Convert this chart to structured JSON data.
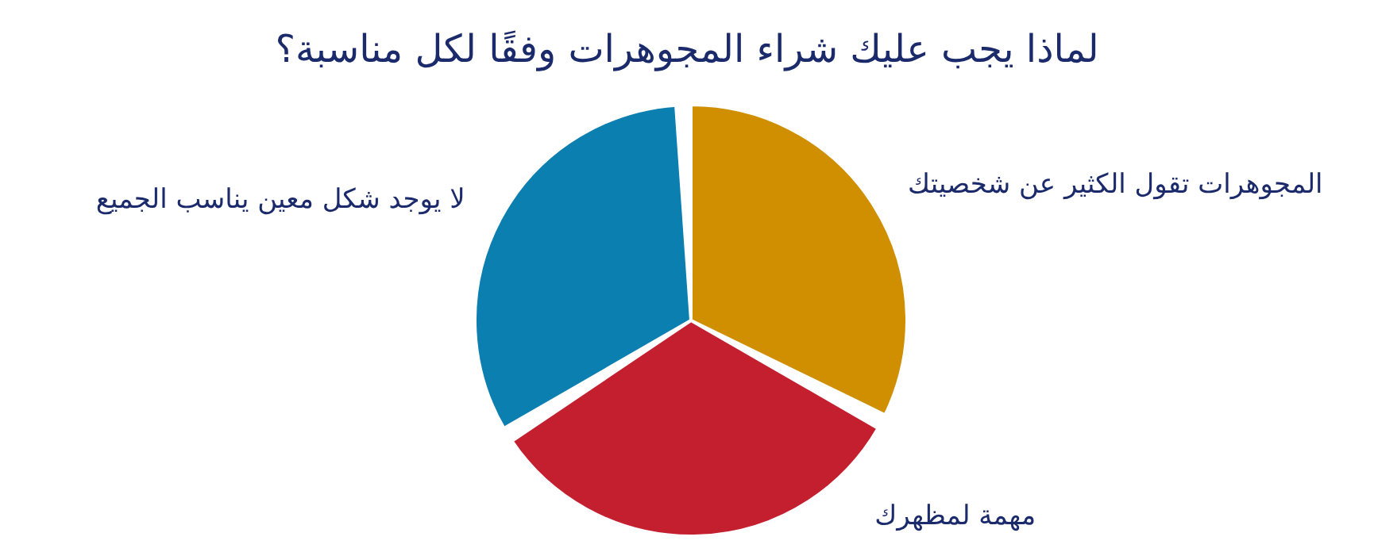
{
  "chart_data": {
    "type": "pie",
    "title": "لماذا يجب عليك شراء المجوهرات وفقًا لكل مناسبة؟",
    "categories": [
      "المجوهرات تقول الكثير عن شخصيتك",
      "مهمة لمظهرك",
      "لا يوجد شكل معين يناسب الجميع"
    ],
    "values": [
      33.33,
      33.33,
      33.34
    ],
    "colors": [
      "#d08f00",
      "#c41f2e",
      "#0b7fb0"
    ],
    "legend": false
  }
}
